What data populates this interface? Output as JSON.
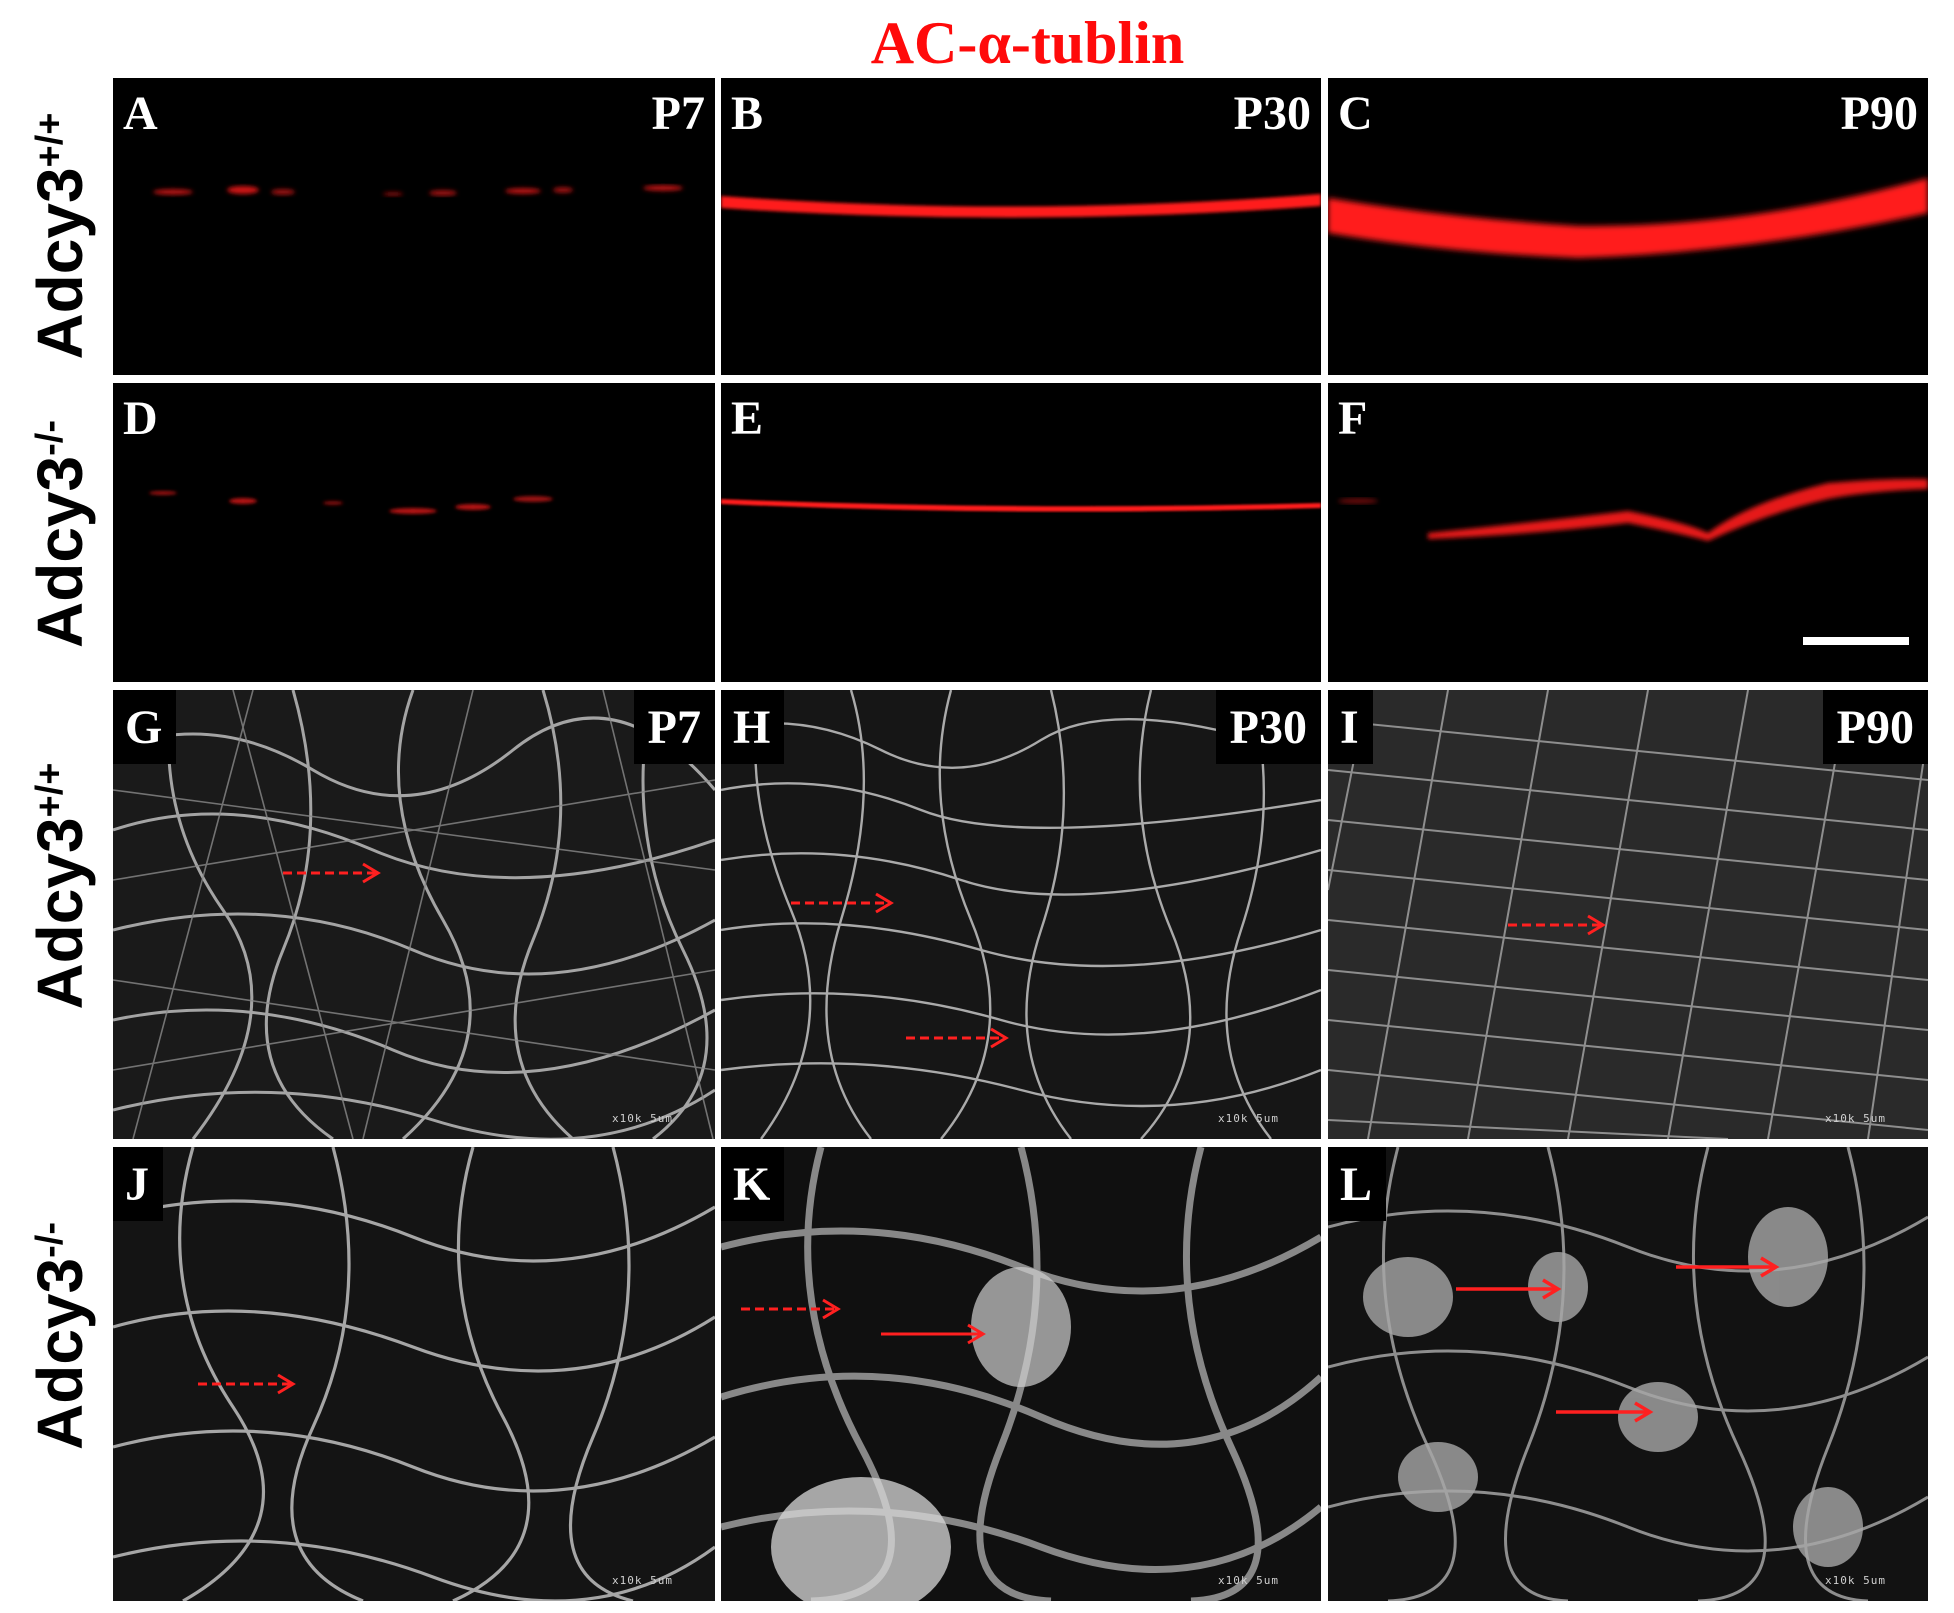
{
  "title": "AC-α-tublin",
  "row_labels": {
    "wt_gene": "Adcy3",
    "wt_sup": "+/+",
    "ko_gene": "Adcy3",
    "ko_sup": "-/-"
  },
  "panels": {
    "A": {
      "letter": "A",
      "age": "P7"
    },
    "B": {
      "letter": "B",
      "age": "P30"
    },
    "C": {
      "letter": "C",
      "age": "P90"
    },
    "D": {
      "letter": "D"
    },
    "E": {
      "letter": "E"
    },
    "F": {
      "letter": "F"
    },
    "G": {
      "letter": "G",
      "age": "P7",
      "scale": "x10k   5um"
    },
    "H": {
      "letter": "H",
      "age": "P30",
      "scale": "x10k   5um"
    },
    "I": {
      "letter": "I",
      "age": "P90",
      "scale": "x10k   5um"
    },
    "J": {
      "letter": "J",
      "scale": "x10k   5um"
    },
    "K": {
      "letter": "K",
      "scale": "x10k   5um"
    },
    "L": {
      "letter": "L",
      "scale": "x10k   5um"
    }
  },
  "colors": {
    "title": "#ff0a0a",
    "fluorescence": "#ff1a1a",
    "arrow": "#ff2020",
    "sem": "#c8c8c8"
  }
}
